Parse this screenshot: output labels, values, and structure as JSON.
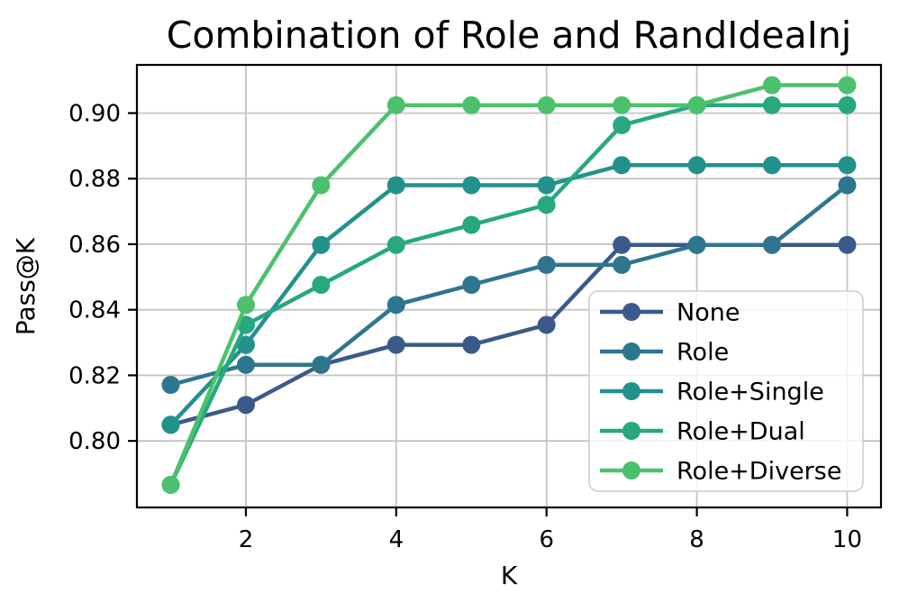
{
  "chart_data": {
    "type": "line",
    "title": "Combination of Role and RandIdeaInj",
    "xlabel": "K",
    "ylabel": "Pass@K",
    "x": [
      1,
      2,
      3,
      4,
      5,
      6,
      7,
      8,
      9,
      10
    ],
    "series": [
      {
        "name": "None",
        "color": "#3b5a8b",
        "values": [
          0.8049,
          0.811,
          0.8232,
          0.8293,
          0.8293,
          0.8354,
          0.8598,
          0.8598,
          0.8598,
          0.8598
        ]
      },
      {
        "name": "Role",
        "color": "#2e768e",
        "values": [
          0.8171,
          0.8232,
          0.8232,
          0.8415,
          0.8476,
          0.8537,
          0.8537,
          0.8598,
          0.8598,
          0.878
        ]
      },
      {
        "name": "Role+Single",
        "color": "#23918b",
        "values": [
          0.8049,
          0.8293,
          0.8598,
          0.878,
          0.878,
          0.878,
          0.8841,
          0.8841,
          0.8841,
          0.8841
        ]
      },
      {
        "name": "Role+Dual",
        "color": "#27a87e",
        "values": [
          0.7866,
          0.8354,
          0.8476,
          0.8598,
          0.8659,
          0.872,
          0.8963,
          0.9024,
          0.9024,
          0.9024
        ]
      },
      {
        "name": "Role+Diverse",
        "color": "#4cc16d",
        "values": [
          0.7866,
          0.8415,
          0.878,
          0.9024,
          0.9024,
          0.9024,
          0.9024,
          0.9024,
          0.9085,
          0.9085
        ]
      }
    ],
    "xticks": [
      2,
      4,
      6,
      8,
      10
    ],
    "xtick_labels": [
      "2",
      "4",
      "6",
      "8",
      "10"
    ],
    "yticks": [
      0.8,
      0.82,
      0.84,
      0.86,
      0.88,
      0.9
    ],
    "ytick_labels": [
      "0.80",
      "0.82",
      "0.84",
      "0.86",
      "0.88",
      "0.90"
    ],
    "xlim": [
      0.55,
      10.45
    ],
    "ylim": [
      0.7797,
      0.9147
    ],
    "grid": true,
    "grid_color": "#c4c4c4",
    "legend": {
      "position": "center right",
      "entries": [
        "None",
        "Role",
        "Role+Single",
        "Role+Dual",
        "Role+Diverse"
      ]
    }
  }
}
